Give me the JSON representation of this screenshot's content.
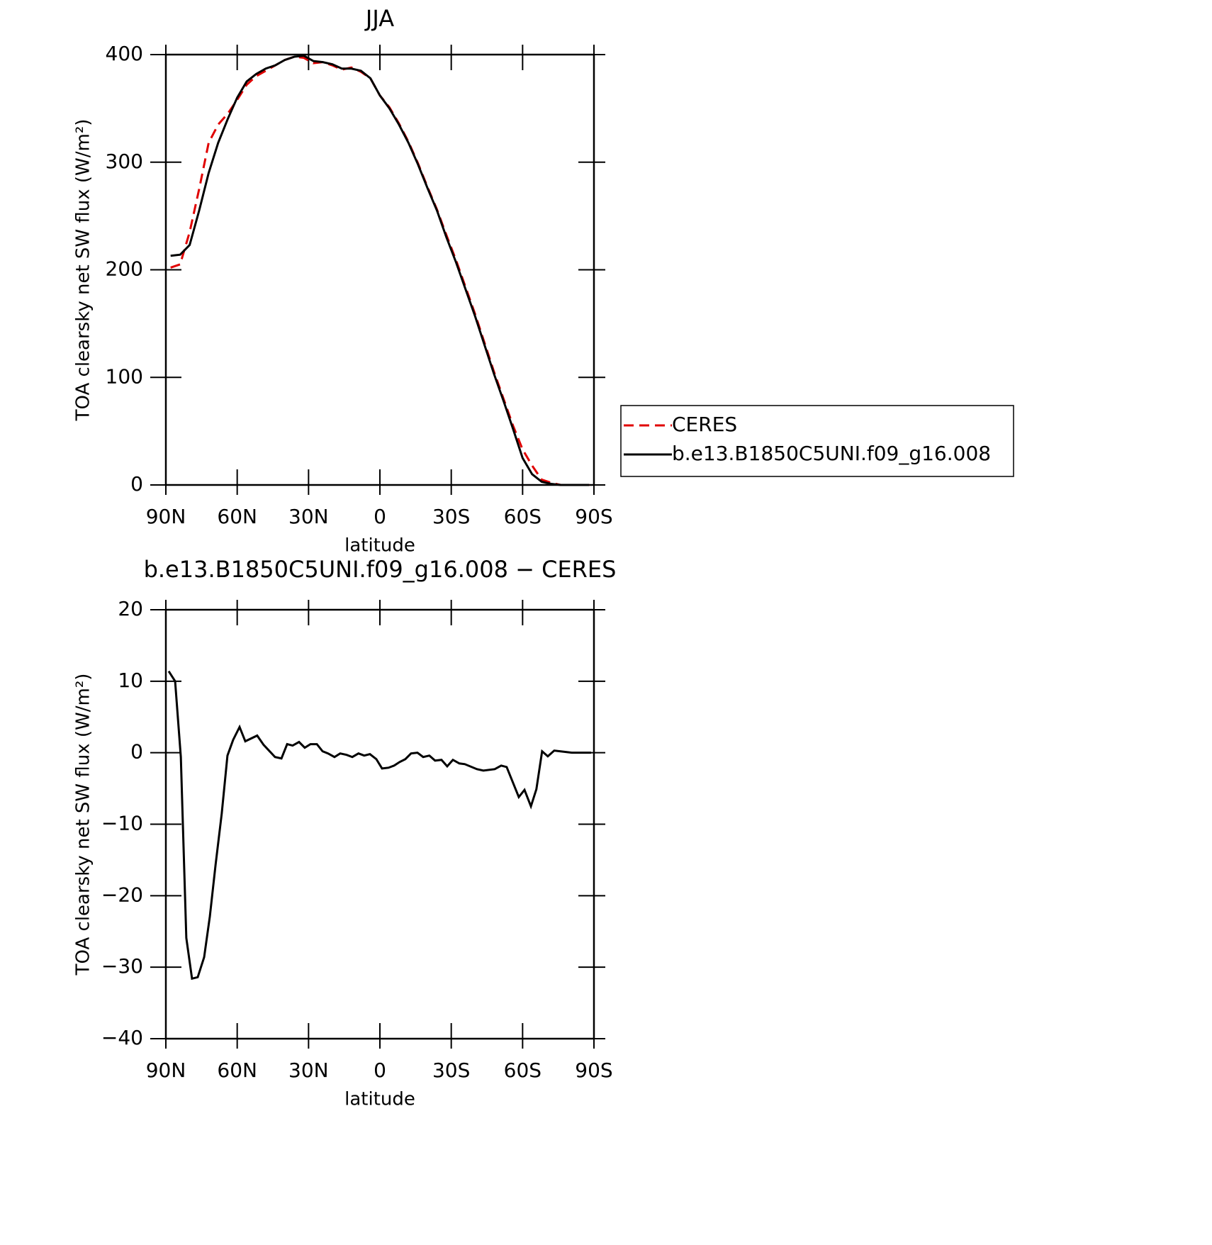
{
  "chart_data": [
    {
      "type": "line",
      "title": "JJA",
      "xlabel": "latitude",
      "ylabel": "TOA clearsky net SW flux (W/m²)",
      "x": [
        88,
        84,
        80,
        76,
        72,
        68,
        64,
        60,
        56,
        52,
        48,
        44,
        40,
        36,
        32,
        28,
        24,
        20,
        16,
        12,
        8,
        4,
        0,
        -4,
        -8,
        -12,
        -16,
        -20,
        -24,
        -28,
        -32,
        -36,
        -40,
        -44,
        -48,
        -52,
        -56,
        -60,
        -64,
        -68,
        -72,
        -76,
        -80,
        -84,
        -88
      ],
      "series": [
        {
          "name": "CERES",
          "color": "#e00000",
          "style": "dashed",
          "values": [
            202,
            205,
            235,
            275,
            318,
            335,
            345,
            358,
            372,
            380,
            385,
            390,
            395,
            398,
            397,
            392,
            393,
            390,
            386,
            388,
            384,
            378,
            362,
            351,
            336,
            319,
            299,
            277,
            256,
            232,
            209,
            184,
            159,
            132,
            105,
            80,
            55,
            33,
            18,
            5,
            2,
            0,
            0,
            0,
            0
          ]
        },
        {
          "name": "b.e13.B1850C5UNI.f09_g16.008",
          "color": "#000000",
          "style": "solid",
          "values": [
            213,
            214,
            223,
            255,
            290,
            318,
            340,
            360,
            375,
            382,
            387,
            390,
            395,
            398,
            399,
            394,
            393,
            391,
            387,
            387,
            385,
            378,
            362,
            350,
            335,
            318,
            298,
            276,
            255,
            230,
            207,
            182,
            157,
            130,
            103,
            78,
            52,
            25,
            10,
            3,
            1,
            0,
            0,
            0,
            0
          ]
        }
      ],
      "xlim": [
        90,
        -90
      ],
      "xticks": [
        {
          "value": 90,
          "label": "90N"
        },
        {
          "value": 60,
          "label": "60N"
        },
        {
          "value": 30,
          "label": "30N"
        },
        0,
        {
          "value": -30,
          "label": "30S"
        },
        {
          "value": -60,
          "label": "60S"
        },
        {
          "value": -90,
          "label": "90S"
        }
      ],
      "ylim": [
        0,
        400
      ],
      "yticks": [
        0,
        100,
        200,
        300,
        400
      ],
      "legend": "right"
    },
    {
      "type": "line",
      "title": "b.e13.B1850C5UNI.f09_g16.008 − CERES",
      "xlabel": "latitude",
      "ylabel": "TOA clearsky net SW flux (W/m²)",
      "x": [
        88.8,
        86.1,
        83.7,
        81.4,
        79,
        76.6,
        73.9,
        71.5,
        69.1,
        66.5,
        64.1,
        61.7,
        59,
        56.6,
        51.6,
        48.9,
        44.1,
        41.4,
        39,
        36.7,
        34,
        31.6,
        29.2,
        26.5,
        24.1,
        21.8,
        19.1,
        16.7,
        14,
        11.6,
        9,
        6.6,
        4.2,
        1.5,
        -0.9,
        -3.6,
        -6,
        -8.3,
        -10.7,
        -13.1,
        -15.8,
        -18.2,
        -20.8,
        -23.2,
        -25.9,
        -28.3,
        -30.7,
        -33.4,
        -35.7,
        -40.8,
        -43.5,
        -48.3,
        -51,
        -53.3,
        -58.4,
        -60.8,
        -63.5,
        -65.8,
        -68.2,
        -70.6,
        -73.3,
        -75.7,
        -80.7,
        -85.8,
        -88.8
      ],
      "values": [
        11.4,
        10,
        -0.6,
        -25.9,
        -31.6,
        -31.4,
        -28.6,
        -22.9,
        -15.7,
        -8.5,
        -0.4,
        1.8,
        3.6,
        1.6,
        2.4,
        1.1,
        -0.6,
        -0.8,
        1.2,
        1,
        1.5,
        0.7,
        1.2,
        1.2,
        0.2,
        -0.1,
        -0.6,
        -0.1,
        -0.3,
        -0.6,
        -0.1,
        -0.4,
        -0.2,
        -0.9,
        -2.2,
        -2.1,
        -1.8,
        -1.3,
        -0.9,
        -0.1,
        0,
        -0.6,
        -0.4,
        -1.1,
        -1,
        -1.9,
        -1,
        -1.5,
        -1.6,
        -2.3,
        -2.5,
        -2.3,
        -1.8,
        -2,
        -6.2,
        -5.2,
        -7.5,
        -5.1,
        0.2,
        -0.5,
        0.3,
        0.2,
        0,
        0,
        0
      ],
      "color": "#000000",
      "xlim": [
        90,
        -90
      ],
      "xticks": [
        {
          "value": 90,
          "label": "90N"
        },
        {
          "value": 60,
          "label": "60N"
        },
        {
          "value": 30,
          "label": "30N"
        },
        0,
        {
          "value": -30,
          "label": "30S"
        },
        {
          "value": -60,
          "label": "60S"
        },
        {
          "value": -90,
          "label": "90S"
        }
      ],
      "ylim": [
        -40,
        20
      ],
      "yticks": [
        {
          "value": -40,
          "label": "−40"
        },
        {
          "value": -30,
          "label": "−30"
        },
        {
          "value": -20,
          "label": "−20"
        },
        {
          "value": -10,
          "label": "−10"
        },
        0,
        10,
        20
      ]
    }
  ]
}
